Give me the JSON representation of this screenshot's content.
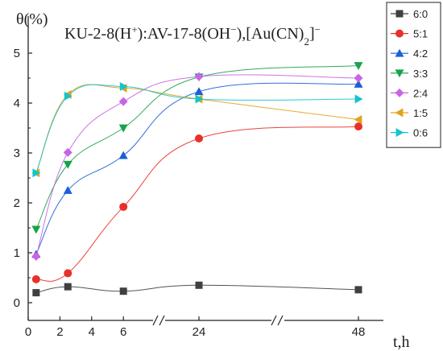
{
  "chart_data": {
    "type": "line",
    "title": {
      "main": "KU-2-8(H",
      "sup1": "+",
      "mid": "):AV-17-8(OH",
      "sup2": "−",
      "mid2": "),[Au(CN)",
      "sub": "2",
      "end": "]",
      "sup3": "−"
    },
    "xlabel": "t,h",
    "ylabel": "θ(%)",
    "ylim": [
      0,
      5.5
    ],
    "y_ticks": [
      0,
      1,
      2,
      3,
      4,
      5
    ],
    "x_ticks": [
      {
        "value": 0,
        "label": "0"
      },
      {
        "value": 2,
        "label": "2"
      },
      {
        "value": 4,
        "label": "4"
      },
      {
        "value": 6,
        "label": "6"
      },
      {
        "value": 24,
        "label": "24"
      },
      {
        "value": 48,
        "label": "48"
      }
    ],
    "x_breaks": true,
    "x": [
      0.5,
      2.5,
      6,
      24,
      48
    ],
    "legend_position": "top-right",
    "grid": false,
    "series": [
      {
        "name": "6:0",
        "color": "#404040",
        "marker": "square",
        "values": [
          0.2,
          0.32,
          0.23,
          0.35,
          0.26
        ]
      },
      {
        "name": "5:1",
        "color": "#e8302a",
        "marker": "circle",
        "values": [
          0.47,
          0.59,
          1.92,
          3.29,
          3.53
        ]
      },
      {
        "name": "4:2",
        "color": "#1a5fd6",
        "marker": "triangle-up",
        "values": [
          0.97,
          2.25,
          2.95,
          4.23,
          4.38
        ]
      },
      {
        "name": "3:3",
        "color": "#17a34a",
        "marker": "triangle-down",
        "values": [
          1.47,
          2.77,
          3.5,
          4.52,
          4.75
        ]
      },
      {
        "name": "2:4",
        "color": "#c864e6",
        "marker": "diamond",
        "values": [
          0.93,
          3.01,
          4.03,
          4.53,
          4.5
        ]
      },
      {
        "name": "1:5",
        "color": "#e3a21a",
        "marker": "triangle-left",
        "values": [
          2.6,
          4.17,
          4.3,
          4.08,
          3.67
        ]
      },
      {
        "name": "0:6",
        "color": "#14c4cc",
        "marker": "triangle-right",
        "values": [
          2.6,
          4.14,
          4.33,
          4.08,
          4.08
        ]
      }
    ]
  }
}
